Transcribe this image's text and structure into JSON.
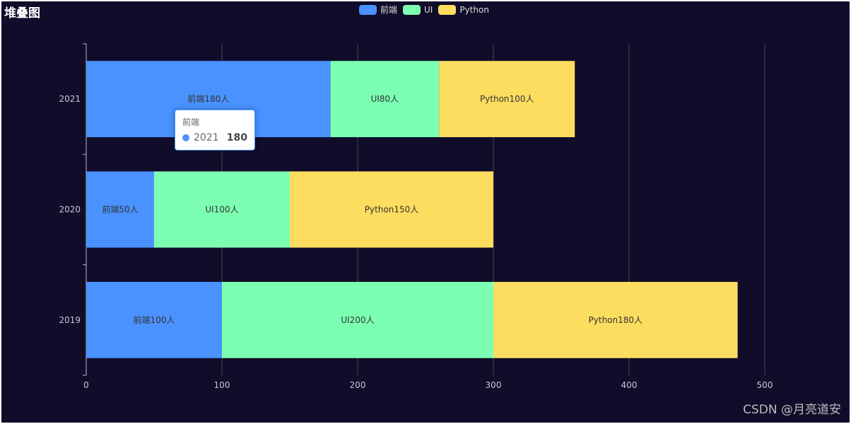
{
  "title": "堆叠图",
  "legend": [
    {
      "name": "前端",
      "color": "#4992ff"
    },
    {
      "name": "UI",
      "color": "#7cffb2"
    },
    {
      "name": "Python",
      "color": "#fddd60"
    }
  ],
  "tooltip": {
    "series": "前端",
    "category": "2021",
    "value": "180",
    "color": "#4992ff"
  },
  "watermark": "CSDN @月亮道安",
  "chart_data": {
    "type": "bar",
    "orientation": "horizontal",
    "stacked": true,
    "title": "堆叠图",
    "categories": [
      "2019",
      "2020",
      "2021"
    ],
    "series": [
      {
        "name": "前端",
        "values": [
          100,
          50,
          180
        ],
        "labels": [
          "前端100人",
          "前端50人",
          "前端180人"
        ],
        "color": "#4992ff"
      },
      {
        "name": "UI",
        "values": [
          200,
          100,
          80
        ],
        "labels": [
          "UI200人",
          "UI100人",
          "UI80人"
        ],
        "color": "#7cffb2"
      },
      {
        "name": "Python",
        "values": [
          180,
          150,
          100
        ],
        "labels": [
          "Python180人",
          "Python150人",
          "Python100人"
        ],
        "color": "#fddd60"
      }
    ],
    "xlim": [
      0,
      500
    ],
    "xticks": [
      0,
      100,
      200,
      300,
      400,
      500
    ],
    "grid": true,
    "legend_position": "top-center"
  }
}
